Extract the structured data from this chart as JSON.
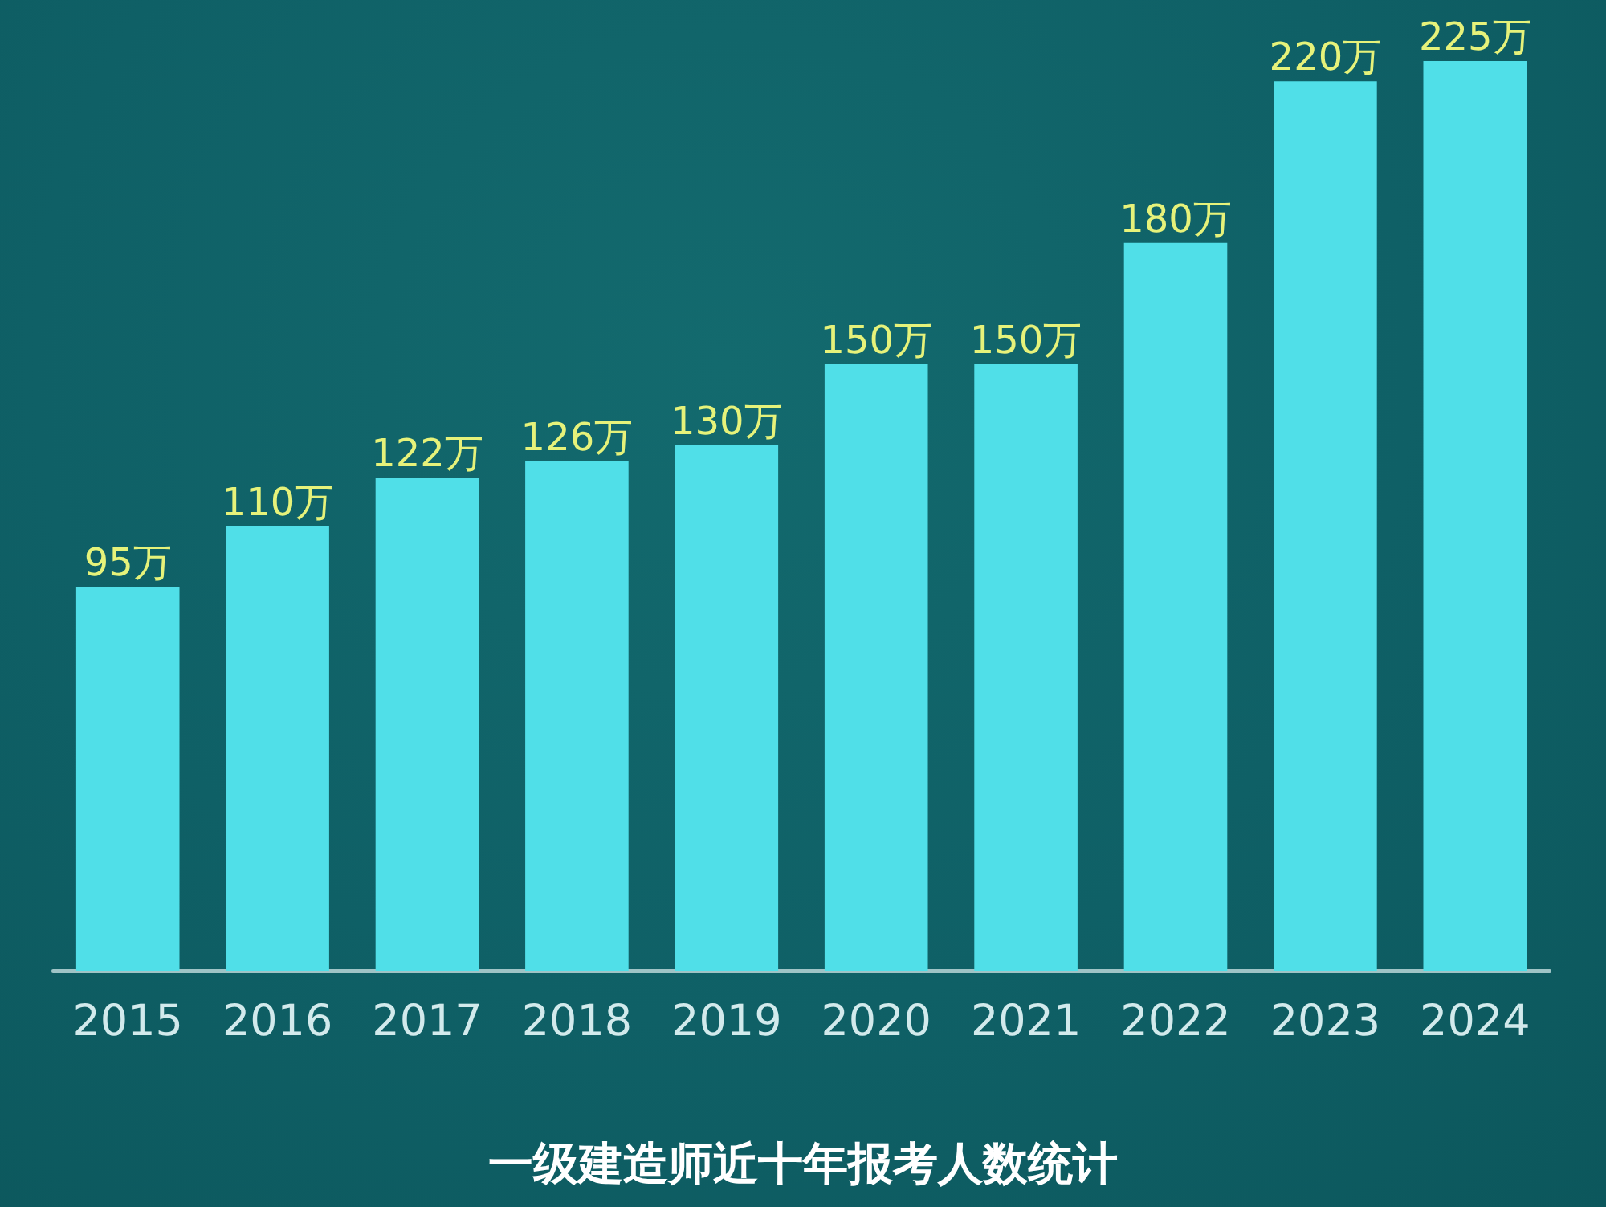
{
  "chart_data": {
    "type": "bar",
    "title": "一级建造师近十年报考人数统计",
    "categories": [
      "2015",
      "2016",
      "2017",
      "2018",
      "2019",
      "2020",
      "2021",
      "2022",
      "2023",
      "2024"
    ],
    "values": [
      95,
      110,
      122,
      126,
      130,
      150,
      150,
      180,
      220,
      225
    ],
    "value_labels": [
      "95万",
      "110万",
      "122万",
      "126万",
      "130万",
      "150万",
      "150万",
      "180万",
      "220万",
      "225万"
    ],
    "color": "#50dfe8"
  }
}
